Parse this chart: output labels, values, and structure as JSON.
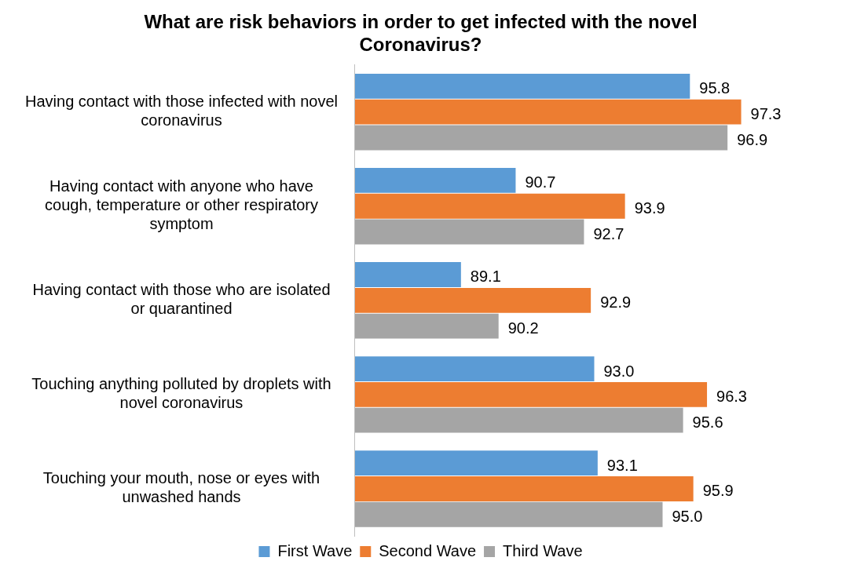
{
  "chart_data": {
    "type": "bar",
    "orientation": "horizontal",
    "title": "What are risk behaviors in order to get infected with the novel Coronavirus?",
    "categories": [
      "Having contact with those infected with novel coronavirus",
      "Having contact with anyone who have cough, temperature or other respiratory symptom",
      "Having contact with those who are isolated or quarantined",
      "Touching anything polluted by droplets with novel coronavirus",
      "Touching your mouth, nose or eyes with unwashed hands"
    ],
    "series": [
      {
        "name": "First Wave",
        "color": "#5b9bd5",
        "values": [
          95.8,
          90.7,
          89.1,
          93.0,
          93.1
        ],
        "value_labels": [
          "95.8",
          "90.7",
          "89.1",
          "93.0",
          "93.1"
        ]
      },
      {
        "name": "Second Wave",
        "color": "#ed7d31",
        "values": [
          97.3,
          93.9,
          92.9,
          96.3,
          95.9
        ],
        "value_labels": [
          "97.3",
          "93.9",
          "92.9",
          "96.3",
          "95.9"
        ]
      },
      {
        "name": "Third Wave",
        "color": "#a5a5a5",
        "values": [
          96.9,
          92.7,
          90.2,
          95.6,
          95.0
        ],
        "value_labels": [
          "96.9",
          "92.7",
          "90.2",
          "95.6",
          "95.0"
        ]
      }
    ],
    "tick_labels": "y",
    "grid": false,
    "legend": "bottom"
  }
}
